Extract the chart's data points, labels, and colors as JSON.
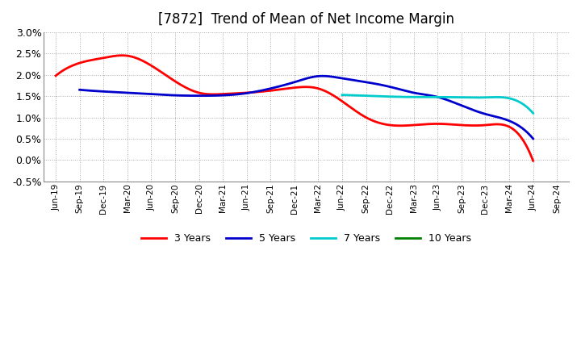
{
  "title": "[7872]  Trend of Mean of Net Income Margin",
  "ylim": [
    -0.005,
    0.03
  ],
  "ytick_vals": [
    -0.005,
    0.0,
    0.005,
    0.01,
    0.015,
    0.02,
    0.025,
    0.03
  ],
  "ytick_labels": [
    "-0.5%",
    "0.0%",
    "0.5%",
    "1.0%",
    "1.5%",
    "2.0%",
    "2.5%",
    "3.0%"
  ],
  "x_labels": [
    "Jun-19",
    "Sep-19",
    "Dec-19",
    "Mar-20",
    "Jun-20",
    "Sep-20",
    "Dec-20",
    "Mar-21",
    "Jun-21",
    "Sep-21",
    "Dec-21",
    "Mar-22",
    "Jun-22",
    "Sep-22",
    "Dec-22",
    "Mar-23",
    "Jun-23",
    "Sep-23",
    "Dec-23",
    "Mar-24",
    "Jun-24",
    "Sep-24"
  ],
  "y3": [
    0.0198,
    0.0228,
    0.024,
    0.0245,
    0.0222,
    0.0185,
    0.0158,
    0.0155,
    0.0158,
    0.0163,
    0.017,
    0.0168,
    0.0138,
    0.01,
    0.0082,
    0.0082,
    0.0085,
    0.0082,
    0.0082,
    0.0078,
    -0.0002,
    null
  ],
  "y5": [
    null,
    0.0165,
    0.0161,
    0.0158,
    0.0155,
    0.0152,
    0.0151,
    0.0152,
    0.0157,
    0.0168,
    0.0183,
    0.0197,
    0.0192,
    0.0183,
    0.0172,
    0.0158,
    0.0148,
    0.0128,
    0.0108,
    0.0092,
    0.005,
    null
  ],
  "y7": [
    null,
    null,
    null,
    null,
    null,
    null,
    null,
    null,
    null,
    null,
    null,
    null,
    0.0153,
    0.0151,
    0.0149,
    0.0148,
    0.0148,
    0.0147,
    0.0147,
    0.0145,
    0.011,
    null
  ],
  "y10": [
    null,
    null,
    null,
    null,
    null,
    null,
    null,
    null,
    null,
    null,
    null,
    null,
    null,
    null,
    null,
    null,
    null,
    null,
    null,
    null,
    null,
    null
  ],
  "color_3y": "#ff0000",
  "color_5y": "#0000cc",
  "color_7y": "#00cccc",
  "color_10y": "#008000",
  "bg_color": "#ffffff",
  "grid_color": "#aaaaaa",
  "title_fontsize": 12,
  "legend_labels": [
    "3 Years",
    "5 Years",
    "7 Years",
    "10 Years"
  ]
}
